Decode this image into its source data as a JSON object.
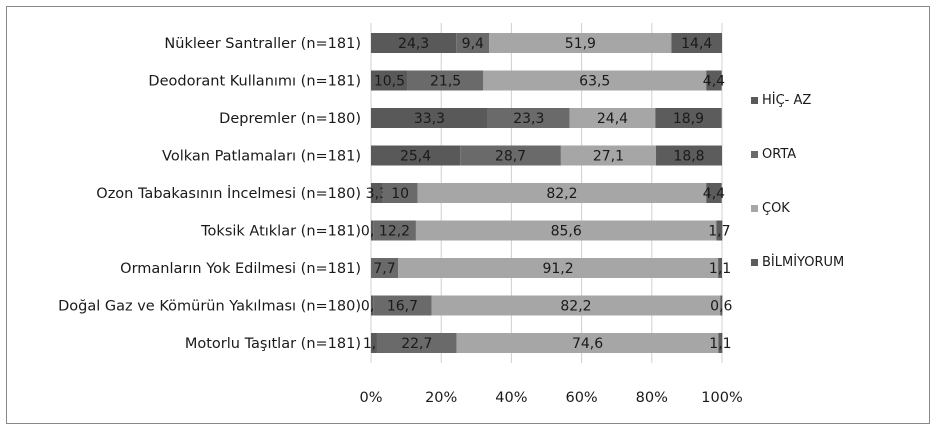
{
  "chart_data": {
    "type": "bar",
    "orientation": "horizontal",
    "stacked": true,
    "title": "",
    "xlabel": "",
    "ylabel": "",
    "xlim": [
      0,
      100
    ],
    "x_ticks": [
      "0%",
      "20%",
      "40%",
      "60%",
      "80%",
      "100%"
    ],
    "grid": true,
    "legend_position": "right",
    "categories": [
      "Nükleer Santraller (n=181)",
      "Deodorant Kullanımı (n=181)",
      "Depremler (n=180)",
      "Volkan Patlamaları (n=181)",
      "Ozon Tabakasının İncelmesi (n=180)",
      "Toksik Atıklar (n=181)",
      "Ormanların Yok Edilmesi (n=181)",
      "Doğal Gaz ve Kömürün Yakılması (n=180)",
      "Motorlu Taşıtlar (n=181)"
    ],
    "series": [
      {
        "name": "HİÇ- AZ",
        "color": "#595959",
        "values": [
          24.3,
          10.5,
          33.3,
          25.4,
          3.3,
          0.6,
          0,
          0.6,
          1.7
        ],
        "labels": [
          "24,3",
          "10,5",
          "33,3",
          "25,4",
          "3,3",
          "0,6",
          "",
          "0,6",
          "1,7"
        ]
      },
      {
        "name": "ORTA",
        "color": "#6a6a6a",
        "values": [
          9.4,
          21.5,
          23.3,
          28.7,
          10,
          12.2,
          7.7,
          16.7,
          22.7
        ],
        "labels": [
          "9,4",
          "21,5",
          "23,3",
          "28,7",
          "10",
          "12,2",
          "7,7",
          "16,7",
          "22,7"
        ]
      },
      {
        "name": "ÇOK",
        "color": "#a6a6a6",
        "values": [
          51.9,
          63.5,
          24.4,
          27.1,
          82.2,
          85.6,
          91.2,
          82.2,
          74.6
        ],
        "labels": [
          "51,9",
          "63,5",
          "24,4",
          "27,1",
          "82,2",
          "85,6",
          "91,2",
          "82,2",
          "74,6"
        ]
      },
      {
        "name": "BİLMİYORUM",
        "color": "#5c5c5c",
        "values": [
          14.4,
          4.4,
          18.9,
          18.8,
          4.4,
          1.7,
          1.1,
          0.6,
          1.1
        ],
        "labels": [
          "14,4",
          "4,4",
          "18,9",
          "18,8",
          "4,4",
          "1,7",
          "1,1",
          "0,6",
          "1,1"
        ]
      }
    ]
  }
}
